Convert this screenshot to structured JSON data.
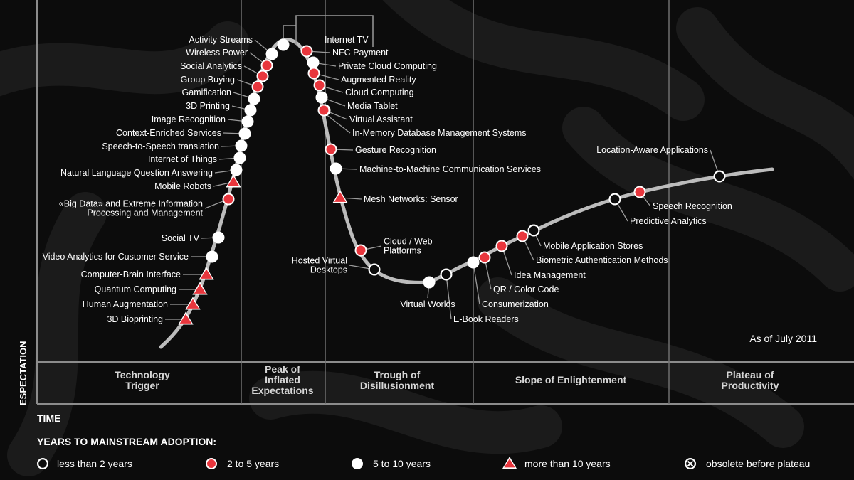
{
  "as_of": "As of July 2011",
  "y_axis_label": "ESPECTATION",
  "x_axis_label": "TIME",
  "legend": {
    "title": "YEARS TO MAINSTREAM ADOPTION:",
    "items": [
      {
        "key": "lt2",
        "label": "less than 2 years"
      },
      {
        "key": "2to5",
        "label": "2 to 5 years"
      },
      {
        "key": "5to10",
        "label": "5 to 10 years"
      },
      {
        "key": "gt10",
        "label": "more than 10 years"
      },
      {
        "key": "obsolete",
        "label": "obsolete before plateau"
      }
    ]
  },
  "phases": [
    {
      "lines": [
        "Technology",
        "Trigger"
      ]
    },
    {
      "lines": [
        "Peak of",
        "Inflated",
        "Expectations"
      ]
    },
    {
      "lines": [
        "Trough of",
        "Disillusionment"
      ]
    },
    {
      "lines": [
        "Slope of Enlightenment"
      ]
    },
    {
      "lines": [
        "Plateau of",
        "Productivity"
      ]
    }
  ],
  "colors": {
    "red": "#e8363d",
    "curve": "#bcbcbc",
    "line": "#8c8c8c",
    "text": "#ffffff",
    "phase": "#d6d6d6"
  },
  "technologies": [
    {
      "name": "3D Bioprinting",
      "type": "gt10"
    },
    {
      "name": "Human Augmentation",
      "type": "gt10"
    },
    {
      "name": "Quantum Computing",
      "type": "gt10"
    },
    {
      "name": "Computer-Brain Interface",
      "type": "gt10"
    },
    {
      "name": "Video Analytics for Customer Service",
      "type": "5to10"
    },
    {
      "name": "Social TV",
      "type": "5to10"
    },
    {
      "name": "«Big Data» and Extreme Information Processing and Management",
      "lines": [
        "«Big Data» and Extreme Information",
        "Processing and Management"
      ],
      "type": "2to5"
    },
    {
      "name": "Mobile Robots",
      "type": "gt10"
    },
    {
      "name": "Natural Language Question Answering",
      "type": "5to10"
    },
    {
      "name": "Internet of Things",
      "type": "5to10"
    },
    {
      "name": "Speech-to-Speech translation",
      "type": "5to10"
    },
    {
      "name": "Context-Enriched Services",
      "type": "5to10"
    },
    {
      "name": "Image Recognition",
      "type": "5to10"
    },
    {
      "name": "3D Printing",
      "type": "5to10"
    },
    {
      "name": "Gamification",
      "type": "5to10"
    },
    {
      "name": "Group Buying",
      "type": "2to5"
    },
    {
      "name": "Social Analytics",
      "type": "2to5"
    },
    {
      "name": "Wireless Power",
      "type": "2to5"
    },
    {
      "name": "Activity Streams",
      "type": "5to10"
    },
    {
      "name": "Internet TV",
      "type": "5to10"
    },
    {
      "name": "NFC Payment",
      "type": "2to5"
    },
    {
      "name": "Private Cloud Computing",
      "type": "5to10"
    },
    {
      "name": "Augmented Reality",
      "type": "2to5"
    },
    {
      "name": "Cloud Computing",
      "type": "2to5"
    },
    {
      "name": "Media Tablet",
      "type": "5to10"
    },
    {
      "name": "Virtual Assistant",
      "type": "2to5"
    },
    {
      "name": "In-Memory Database Management Systems",
      "type": "2to5"
    },
    {
      "name": "Gesture Recognition",
      "type": "2to5"
    },
    {
      "name": "Machine-to-Machine Communication Services",
      "type": "5to10"
    },
    {
      "name": "Mesh Networks: Sensor",
      "type": "gt10"
    },
    {
      "name": "Cloud / Web Platforms",
      "lines": [
        "Cloud / Web",
        "Platforms"
      ],
      "type": "2to5"
    },
    {
      "name": "Hosted Virtual Desktops",
      "lines": [
        "Hosted Virtual",
        "Desktops"
      ],
      "type": "lt2"
    },
    {
      "name": "Virtual Worlds",
      "type": "5to10"
    },
    {
      "name": "E-Book Readers",
      "type": "lt2"
    },
    {
      "name": "Consumerization",
      "type": "5to10"
    },
    {
      "name": "QR / Color Code",
      "type": "2to5"
    },
    {
      "name": "Idea Management",
      "type": "2to5"
    },
    {
      "name": "Biometric Authentication Methods",
      "type": "2to5"
    },
    {
      "name": "Mobile Application Stores",
      "type": "lt2"
    },
    {
      "name": "Predictive Analytics",
      "type": "lt2"
    },
    {
      "name": "Speech Recognition",
      "type": "2to5"
    },
    {
      "name": "Location-Aware Applications",
      "type": "lt2"
    }
  ]
}
